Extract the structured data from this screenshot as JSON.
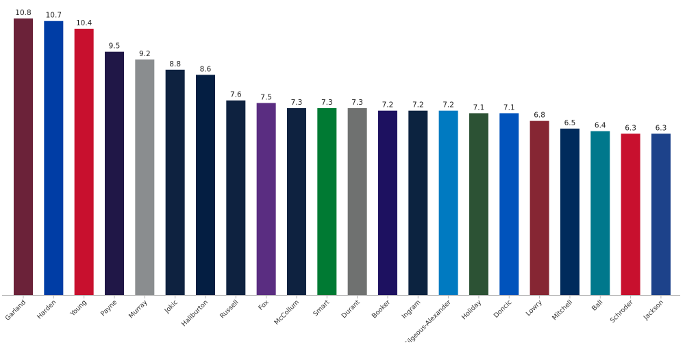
{
  "chart_data": {
    "type": "bar",
    "title": "",
    "xlabel": "",
    "ylabel": "",
    "ylim": [
      0,
      10.8
    ],
    "grid": false,
    "data_labels": true,
    "categories": [
      "Garland",
      "Harden",
      "Young",
      "Payne",
      "Murray",
      "Jokic",
      "Haliburton",
      "Russell",
      "Fox",
      "McCollum",
      "Smart",
      "Durant",
      "Booker",
      "Ingram",
      "Gilgeous-Alexander",
      "Holiday",
      "Doncic",
      "Lowry",
      "Mitchell",
      "Ball",
      "Schroder",
      "Jackson"
    ],
    "values": [
      10.8,
      10.7,
      10.4,
      9.5,
      9.2,
      8.8,
      8.6,
      7.6,
      7.5,
      7.3,
      7.3,
      7.3,
      7.2,
      7.2,
      7.2,
      7.1,
      7.1,
      6.8,
      6.5,
      6.4,
      6.3,
      6.3
    ],
    "colors": [
      "#6b2239",
      "#003da5",
      "#c8102e",
      "#201747",
      "#8a8d8f",
      "#0e2240",
      "#041e42",
      "#0e2240",
      "#5a2d81",
      "#0e2240",
      "#007a33",
      "#6f7170",
      "#1d1160",
      "#0c2340",
      "#007ac1",
      "#2c5234",
      "#0053bc",
      "#862633",
      "#002b5c",
      "#00788c",
      "#c8102e",
      "#1d428a"
    ]
  }
}
